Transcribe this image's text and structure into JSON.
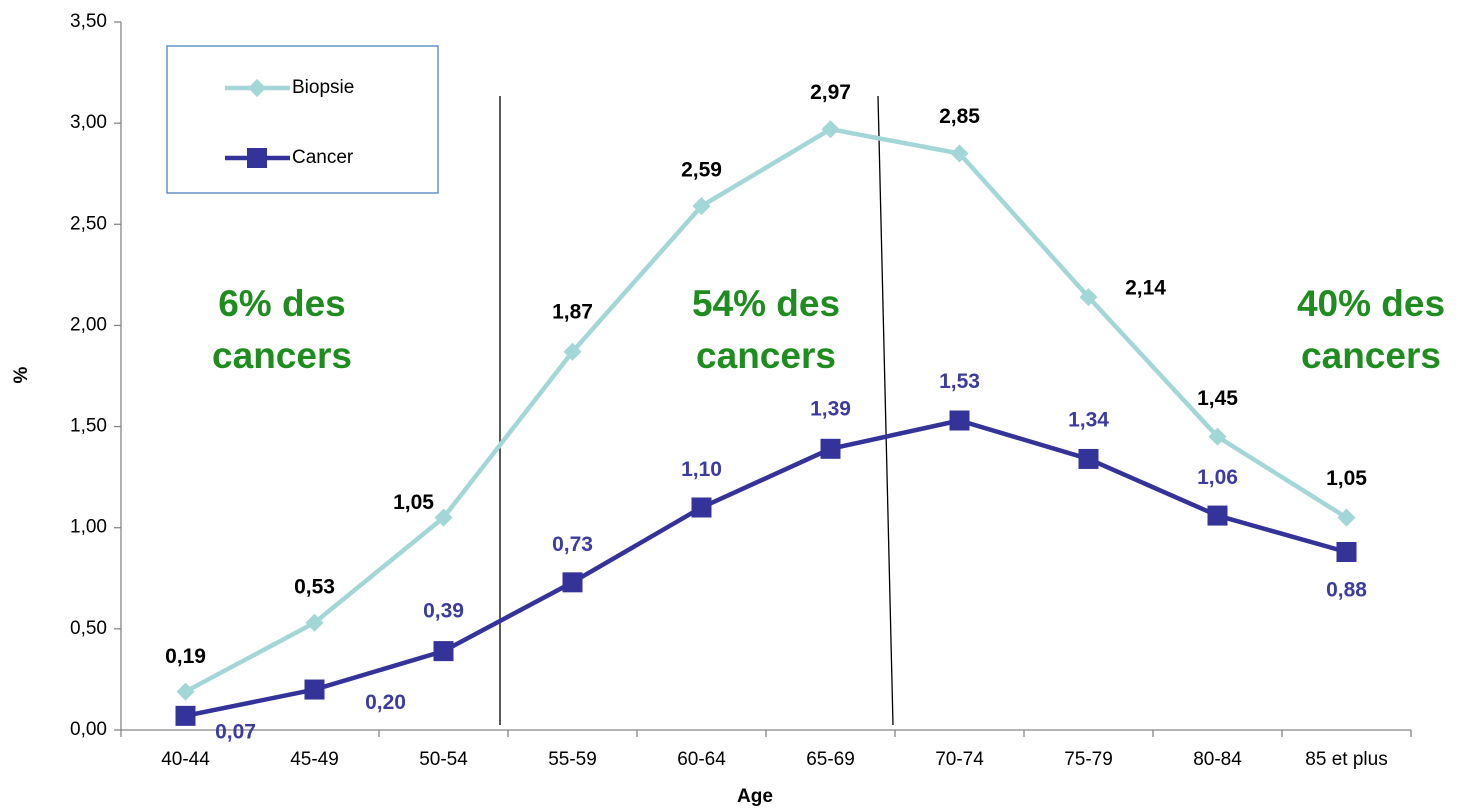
{
  "chart_data": {
    "type": "line",
    "y_label": "%",
    "x_label": "Age",
    "categories": [
      "40-44",
      "45-49",
      "50-54",
      "55-59",
      "60-64",
      "65-69",
      "70-74",
      "75-79",
      "80-84",
      "85 et plus"
    ],
    "series": [
      {
        "name": "Biopsie",
        "color": "#a3d6d6",
        "label_color": "#000000",
        "marker": "diamond",
        "values": [
          0.19,
          0.53,
          1.05,
          1.87,
          2.59,
          2.97,
          2.85,
          2.14,
          1.45,
          1.05
        ],
        "value_labels": [
          "0,19",
          "0,53",
          "1,05",
          "1,87",
          "2,59",
          "2,97",
          "2,85",
          "2,14",
          "1,45",
          "1,05"
        ]
      },
      {
        "name": "Cancer",
        "color": "#333399",
        "label_color": "#3c3ca0",
        "marker": "square",
        "values": [
          0.07,
          0.2,
          0.39,
          0.73,
          1.1,
          1.39,
          1.53,
          1.34,
          1.06,
          0.88
        ],
        "value_labels": [
          "0,07",
          "0,20",
          "0,39",
          "0,73",
          "1,10",
          "1,39",
          "1,53",
          "1,34",
          "1,06",
          "0,88"
        ]
      }
    ],
    "ylim": [
      0,
      3.5
    ],
    "yticks": [
      {
        "value": 0,
        "label": "0,00"
      },
      {
        "value": 0.5,
        "label": "0,50"
      },
      {
        "value": 1,
        "label": "1,00"
      },
      {
        "value": 1.5,
        "label": "1,50"
      },
      {
        "value": 2,
        "label": "2,00"
      },
      {
        "value": 2.5,
        "label": "2,50"
      },
      {
        "value": 3,
        "label": "3,00"
      },
      {
        "value": 3.5,
        "label": "3,50"
      }
    ],
    "grid": false,
    "legend": "top-left",
    "annotations": [
      [
        "6% des",
        "cancers"
      ],
      [
        "54% des",
        "cancers"
      ],
      [
        "40% des",
        "cancers"
      ]
    ]
  }
}
